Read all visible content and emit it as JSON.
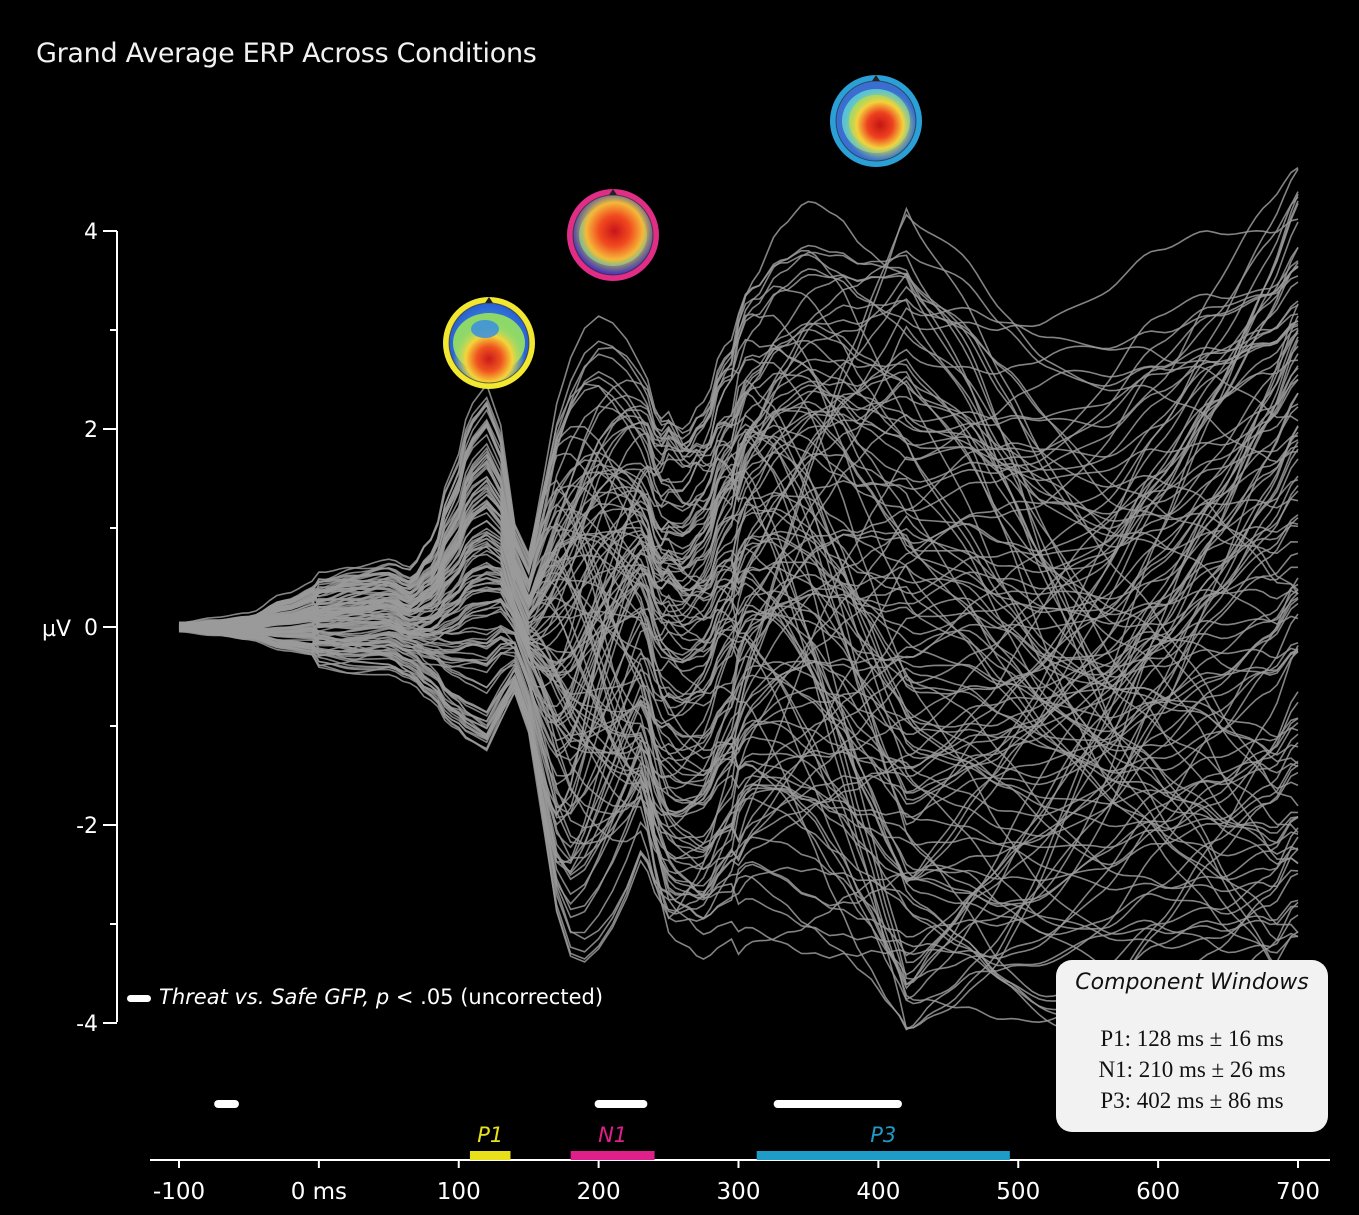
{
  "title": "Grand Average ERP Across Conditions",
  "chart_data": {
    "type": "line",
    "title": "Grand Average ERP Across Conditions",
    "xlabel": "",
    "ylabel": "µV",
    "xlim": [
      -100,
      700
    ],
    "ylim": [
      -4,
      4
    ],
    "x_ticks": [
      "-100",
      "0 ms",
      "100",
      "200",
      "300",
      "400",
      "500",
      "600",
      "700"
    ],
    "x_tick_values": [
      -100,
      0,
      100,
      200,
      300,
      400,
      500,
      600,
      700
    ],
    "y_ticks": [
      "4",
      "2",
      "0",
      "-2",
      "-4"
    ],
    "y_tick_values": [
      4,
      2,
      0,
      -2,
      -4
    ],
    "y_minor_step": 1,
    "n_traces": 128,
    "trace_color": "#9a9a9a",
    "x_sample_ms": [
      -100,
      -75,
      -50,
      -25,
      0,
      25,
      50,
      65,
      80,
      95,
      110,
      120,
      130,
      140,
      150,
      160,
      170,
      180,
      190,
      200,
      210,
      220,
      230,
      245,
      260,
      275,
      290,
      310,
      330,
      350,
      370,
      390,
      410,
      430,
      460,
      490,
      520,
      560,
      600,
      640,
      680,
      700
    ],
    "example_traces": [
      {
        "name": "upper envelope",
        "values": [
          0.0,
          0.05,
          0.1,
          0.3,
          0.45,
          0.55,
          0.6,
          0.5,
          0.8,
          1.5,
          2.2,
          2.4,
          2.0,
          1.0,
          0.7,
          1.6,
          2.5,
          3.0,
          3.3,
          3.4,
          3.3,
          3.1,
          2.8,
          2.2,
          2.2,
          2.6,
          3.3,
          4.0,
          4.4,
          4.6,
          4.5,
          4.3,
          4.2,
          4.1,
          4.2,
          4.0,
          3.8,
          3.7,
          4.0,
          4.3,
          4.5,
          4.7
        ]
      },
      {
        "name": "lower envelope",
        "values": [
          0.0,
          -0.05,
          -0.1,
          -0.2,
          -0.25,
          -0.3,
          -0.3,
          -0.4,
          -0.6,
          -0.9,
          -1.1,
          -1.2,
          -0.9,
          -0.6,
          -1.0,
          -2.0,
          -3.0,
          -3.5,
          -3.6,
          -3.5,
          -3.3,
          -3.0,
          -2.6,
          -3.0,
          -3.2,
          -3.4,
          -3.3,
          -3.1,
          -3.2,
          -3.4,
          -3.6,
          -3.8,
          -4.0,
          -4.2,
          -4.4,
          -4.6,
          -4.7,
          -4.6,
          -4.3,
          -4.0,
          -3.6,
          -3.2
        ]
      }
    ],
    "significance_label": "Threat vs. Safe GFP, p < .05 (uncorrected)",
    "significant_windows_ms": [
      [
        -72,
        -60
      ],
      [
        200,
        232
      ],
      [
        328,
        414
      ]
    ],
    "components": [
      {
        "name": "P1",
        "window_ms": [
          108,
          137
        ],
        "color": "#e8e01a",
        "ring_color": "#f2e830"
      },
      {
        "name": "N1",
        "window_ms": [
          180,
          240
        ],
        "color": "#e0208a",
        "ring_color": "#e02d86"
      },
      {
        "name": "P3",
        "window_ms": [
          313,
          494
        ],
        "color": "#1f9bc7",
        "ring_color": "#2aa0d6"
      }
    ],
    "topomaps": [
      {
        "component": "P1",
        "hot": "lower-center"
      },
      {
        "component": "N1",
        "hot": "center"
      },
      {
        "component": "P3",
        "hot": "center"
      }
    ]
  },
  "legend": {
    "heading": "Component Windows",
    "rows": [
      "P1: 128 ms ± 16 ms",
      "N1: 210 ms ± 26 ms",
      "P3: 402 ms ± 86 ms"
    ]
  },
  "significance": {
    "text_italic": "Threat vs. Safe GFP, ",
    "text_p": "p",
    "text_rest": " < .05 (uncorrected)"
  }
}
